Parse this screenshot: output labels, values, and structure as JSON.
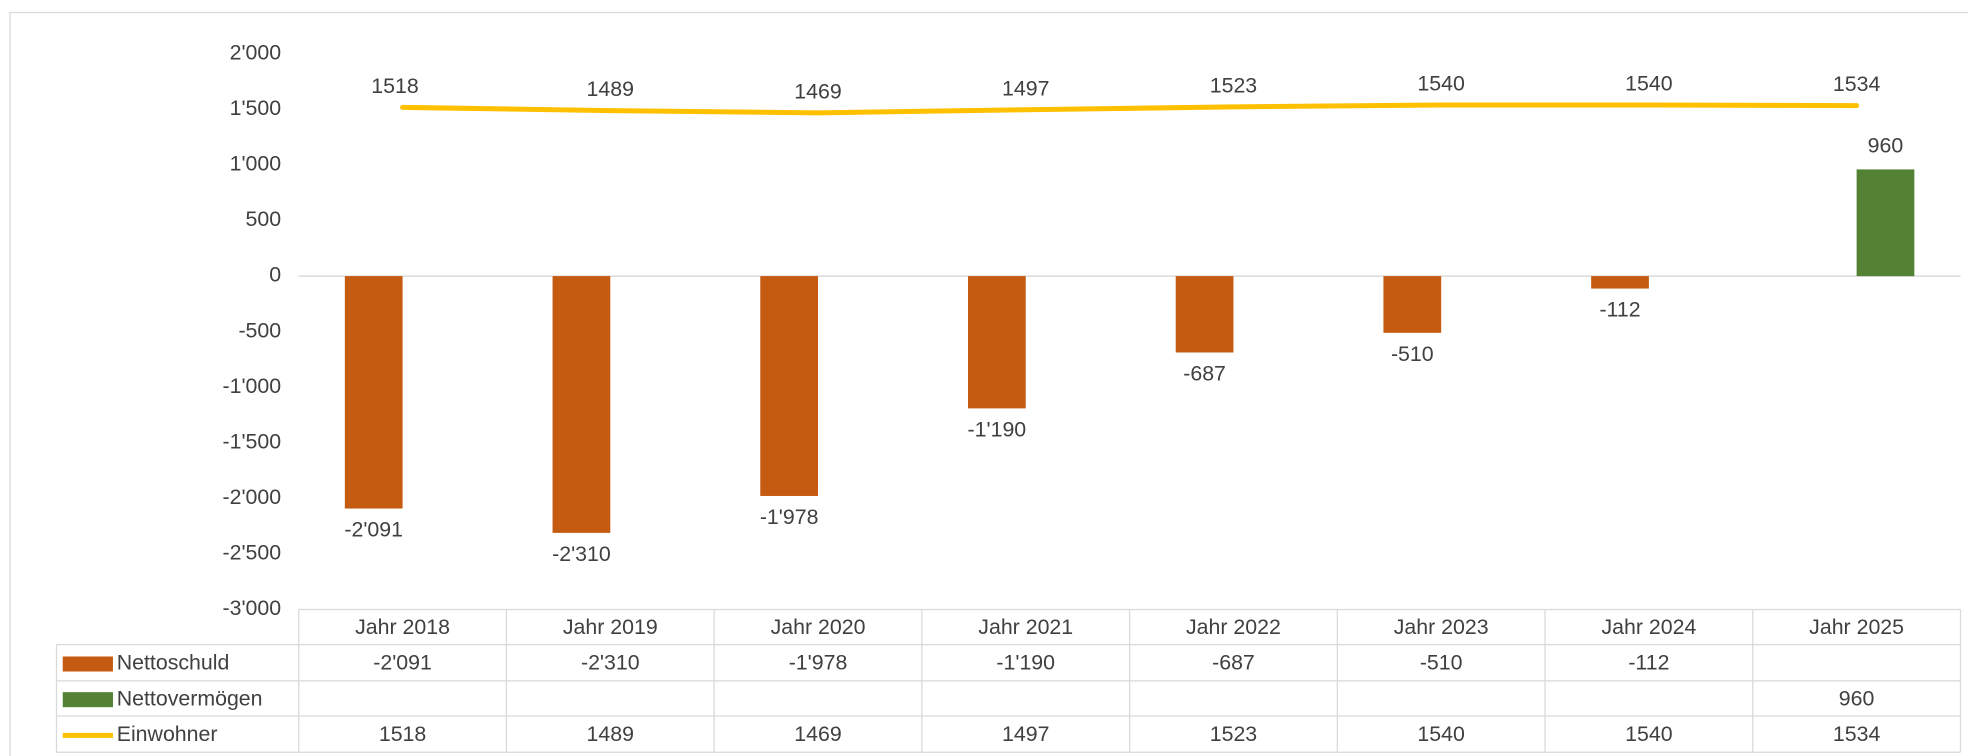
{
  "chart_data": {
    "type": "bar",
    "categories": [
      "Jahr 2018",
      "Jahr 2019",
      "Jahr 2020",
      "Jahr 2021",
      "Jahr 2022",
      "Jahr 2023",
      "Jahr 2024",
      "Jahr 2025"
    ],
    "series": [
      {
        "name": "Nettoschuld",
        "color": "#c55a11",
        "type": "bar",
        "values": [
          -2091,
          -2310,
          -1978,
          -1190,
          -687,
          -510,
          -112,
          null
        ],
        "value_labels": [
          "-2'091",
          "-2'310",
          "-1'978",
          "-1'190",
          "-687",
          "-510",
          "-112",
          null
        ]
      },
      {
        "name": "Nettovermögen",
        "color": "#548235",
        "type": "bar",
        "values": [
          null,
          null,
          null,
          null,
          null,
          null,
          null,
          960
        ]
      },
      {
        "name": "Einwohner",
        "color": "#ffc000",
        "type": "line",
        "values": [
          1518,
          1489,
          1469,
          1497,
          1523,
          1540,
          1540,
          1534
        ]
      }
    ],
    "ylim": [
      -3000,
      2000
    ],
    "yticks": [
      {
        "value": -3000,
        "label": "-3'000"
      },
      {
        "value": -2500,
        "label": "-2'500"
      },
      {
        "value": -2000,
        "label": "-2'000"
      },
      {
        "value": -1500,
        "label": "-1'500"
      },
      {
        "value": -1000,
        "label": "-1'000"
      },
      -500,
      0,
      500,
      {
        "value": 1000,
        "label": "1'000"
      },
      {
        "value": 1500,
        "label": "1'500"
      },
      {
        "value": 2000,
        "label": "2'000"
      }
    ],
    "grid": false,
    "data_table": true
  }
}
